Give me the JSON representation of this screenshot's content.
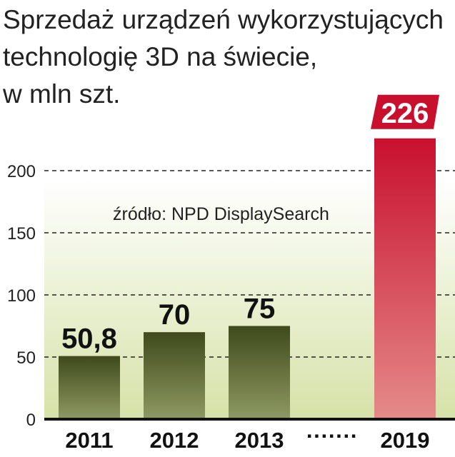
{
  "chart_data": {
    "type": "bar",
    "title_lines": [
      "Sprzedaż urządzeń wykorzystujących",
      "technologię 3D na świecie,",
      "w mln szt."
    ],
    "source": "źródło: NPD DisplaySearch",
    "categories": [
      "2011",
      "2012",
      "2013",
      "2019"
    ],
    "values": [
      50.8,
      70,
      75,
      226
    ],
    "value_labels": [
      "50,8",
      "70",
      "75",
      "226"
    ],
    "gap_marker": "·······",
    "highlight_index": 3,
    "ylim": [
      0,
      250
    ],
    "yticks": [
      0,
      50,
      100,
      150,
      200
    ],
    "grid": true,
    "colors": {
      "bar_top": "#3f4a1c",
      "bar_bottom": "#8e9a62",
      "highlight_top": "#c8102e",
      "highlight_bottom": "#e58a8a",
      "label_badge": "#c8102e",
      "bg_top": "#ffffff",
      "bg_bottom": "#d6e2a8"
    }
  }
}
